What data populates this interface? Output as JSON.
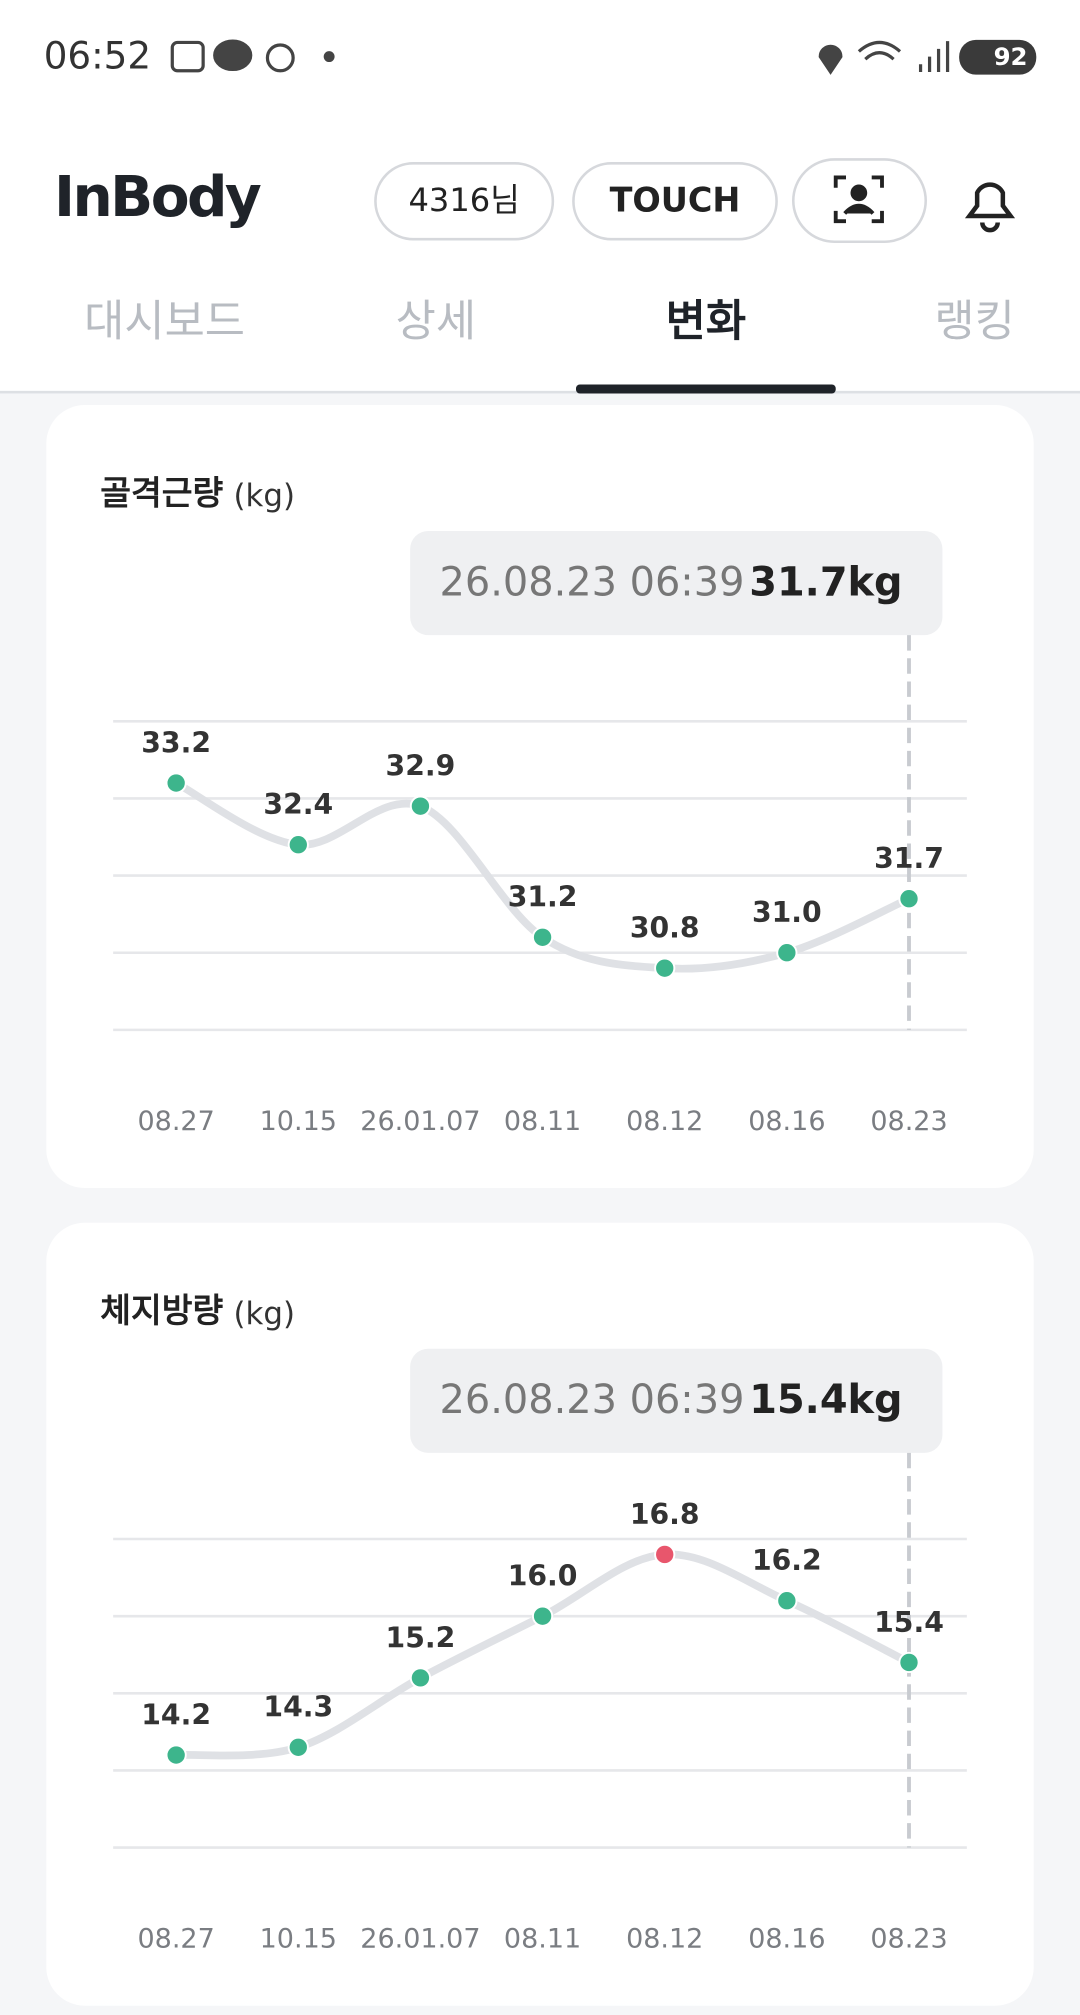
{
  "status_bar": {
    "time": "06:52",
    "battery": "92"
  },
  "header": {
    "logo": "InBody",
    "user_button": "4316님",
    "touch_button": "TOUCH"
  },
  "tabs": [
    "대시보드",
    "상세",
    "변화",
    "랭킹"
  ],
  "chart_data": [
    {
      "type": "line",
      "title": "골격근량",
      "unit": "(kg)",
      "tooltip": {
        "datetime": "26.08.23 06:39",
        "value": "31.7kg"
      },
      "categories": [
        "08.27",
        "10.15",
        "26.01.07",
        "08.11",
        "08.12",
        "08.16",
        "08.23"
      ],
      "values": [
        33.2,
        32.4,
        32.9,
        31.2,
        30.8,
        31.0,
        31.7
      ],
      "value_labels": [
        "33.2",
        "32.4",
        "32.9",
        "31.2",
        "30.8",
        "31.0",
        "31.7"
      ],
      "point_colors": [
        "#3db58c",
        "#3db58c",
        "#3db58c",
        "#3db58c",
        "#3db58c",
        "#3db58c",
        "#3db58c"
      ],
      "line_color": "#dfe1e5",
      "ylim": [
        30,
        34
      ],
      "yticks": [
        30,
        31,
        32,
        33,
        34
      ],
      "grid": true
    },
    {
      "type": "line",
      "title": "체지방량",
      "unit": "(kg)",
      "tooltip": {
        "datetime": "26.08.23 06:39",
        "value": "15.4kg"
      },
      "categories": [
        "08.27",
        "10.15",
        "26.01.07",
        "08.11",
        "08.12",
        "08.16",
        "08.23"
      ],
      "values": [
        14.2,
        14.3,
        15.2,
        16.0,
        16.8,
        16.2,
        15.4
      ],
      "value_labels": [
        "14.2",
        "14.3",
        "15.2",
        "16.0",
        "16.8",
        "16.2",
        "15.4"
      ],
      "point_colors": [
        "#3db58c",
        "#3db58c",
        "#3db58c",
        "#3db58c",
        "#e8566c",
        "#3db58c",
        "#3db58c"
      ],
      "line_color": "#dfe1e5",
      "ylim": [
        13,
        17
      ],
      "yticks": [
        13,
        14,
        15,
        16,
        17
      ],
      "grid": true
    }
  ]
}
